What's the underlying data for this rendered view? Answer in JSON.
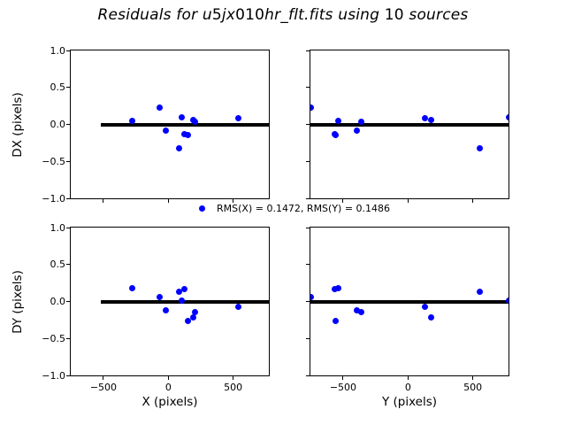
{
  "chart_data": {
    "type": "scatter",
    "title": "Residuals for u5jx010hr_flt.fits using 10 sources",
    "legend_label": "RMS(X) = 0.1472, RMS(Y) = 0.1486",
    "rms": {
      "x": 0.1472,
      "y": 0.1486
    },
    "n_sources": 10,
    "marker": "blue-filled-circle",
    "colors": {
      "marker": "#0000ff",
      "zero_line": "#000000",
      "axes": "#000000",
      "text": "#000000",
      "background": "#ffffff"
    },
    "xlim": [
      -752,
      775
    ],
    "ylim": [
      -1.0,
      1.0
    ],
    "xticks": {
      "values": [
        -500,
        0,
        500
      ],
      "labels": [
        "−500",
        "0",
        "500"
      ]
    },
    "yticks": {
      "values": [
        1.0,
        0.5,
        0.0,
        -0.5,
        -1.0
      ],
      "labels": [
        "1.0",
        "0.5",
        "0.0",
        "−0.5",
        "−1.0"
      ]
    },
    "grid": false,
    "legend_position": "center, between subplot rows",
    "sources": [
      {
        "x": -280,
        "y": -536,
        "dx": 0.05,
        "dy": 0.18
      },
      {
        "x": -65,
        "y": -752,
        "dx": 0.23,
        "dy": 0.06
      },
      {
        "x": -17,
        "y": -396,
        "dx": -0.08,
        "dy": -0.12
      },
      {
        "x": 84,
        "y": 552,
        "dx": -0.32,
        "dy": 0.13
      },
      {
        "x": 104,
        "y": 775,
        "dx": 0.09,
        "dy": 0.01
      },
      {
        "x": 122,
        "y": -564,
        "dx": -0.13,
        "dy": 0.17
      },
      {
        "x": 153,
        "y": -559,
        "dx": -0.14,
        "dy": -0.26
      },
      {
        "x": 190,
        "y": 176,
        "dx": 0.06,
        "dy": -0.22
      },
      {
        "x": 204,
        "y": -358,
        "dx": 0.04,
        "dy": -0.14
      },
      {
        "x": 537,
        "y": 128,
        "dx": 0.08,
        "dy": -0.07
      }
    ],
    "subplots": [
      {
        "id": "dx-vs-x",
        "row": 0,
        "col": 0,
        "x_field": "x",
        "y_field": "dx",
        "xlabel": "",
        "ylabel": "DX (pixels)",
        "zero_line_span": [
          -518,
          775
        ],
        "x_tick_labels_visible": false,
        "y_tick_labels_visible": true
      },
      {
        "id": "dx-vs-y",
        "row": 0,
        "col": 1,
        "x_field": "y",
        "y_field": "dx",
        "xlabel": "",
        "ylabel": "",
        "zero_line_span": [
          -752,
          775
        ],
        "x_tick_labels_visible": false,
        "y_tick_labels_visible": false
      },
      {
        "id": "dy-vs-x",
        "row": 1,
        "col": 0,
        "x_field": "x",
        "y_field": "dy",
        "xlabel": "X (pixels)",
        "ylabel": "DY (pixels)",
        "zero_line_span": [
          -518,
          775
        ],
        "x_tick_labels_visible": true,
        "y_tick_labels_visible": true
      },
      {
        "id": "dy-vs-y",
        "row": 1,
        "col": 1,
        "x_field": "y",
        "y_field": "dy",
        "xlabel": "Y (pixels)",
        "ylabel": "",
        "zero_line_span": [
          -752,
          775
        ],
        "x_tick_labels_visible": true,
        "y_tick_labels_visible": false
      }
    ]
  }
}
